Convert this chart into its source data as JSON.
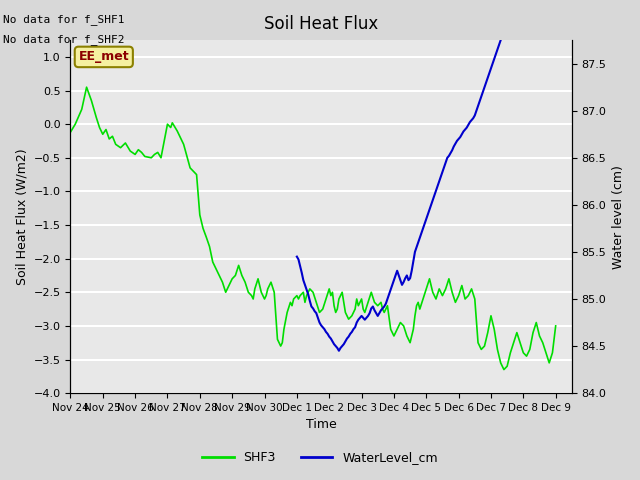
{
  "title": "Soil Heat Flux",
  "xlabel": "Time",
  "ylabel_left": "Soil Heat Flux (W/m2)",
  "ylabel_right": "Water level (cm)",
  "text_no_data": [
    "No data for f_SHF1",
    "No data for f_SHF2"
  ],
  "ee_met_label": "EE_met",
  "ylim_left": [
    -4.0,
    1.25
  ],
  "ylim_right": [
    84.0,
    87.75
  ],
  "yticks_left": [
    -4.0,
    -3.5,
    -3.0,
    -2.5,
    -2.0,
    -1.5,
    -1.0,
    -0.5,
    0.0,
    0.5,
    1.0
  ],
  "yticks_right": [
    84.0,
    84.5,
    85.0,
    85.5,
    86.0,
    86.5,
    87.0,
    87.5
  ],
  "bg_color": "#e8e8e8",
  "grid_color": "#ffffff",
  "shf3_color": "#00dd00",
  "water_color": "#0000cc",
  "legend_shf3": "SHF3",
  "legend_water": "WaterLevel_cm",
  "shf3_data": [
    [
      0,
      -0.12
    ],
    [
      0.15,
      0.0
    ],
    [
      0.35,
      0.22
    ],
    [
      0.5,
      0.55
    ],
    [
      0.65,
      0.35
    ],
    [
      0.8,
      0.1
    ],
    [
      0.9,
      -0.05
    ],
    [
      1.0,
      -0.15
    ],
    [
      1.1,
      -0.08
    ],
    [
      1.2,
      -0.22
    ],
    [
      1.3,
      -0.18
    ],
    [
      1.4,
      -0.3
    ],
    [
      1.55,
      -0.35
    ],
    [
      1.7,
      -0.28
    ],
    [
      1.85,
      -0.4
    ],
    [
      2.0,
      -0.45
    ],
    [
      2.1,
      -0.38
    ],
    [
      2.2,
      -0.42
    ],
    [
      2.3,
      -0.48
    ],
    [
      2.5,
      -0.5
    ],
    [
      2.6,
      -0.45
    ],
    [
      2.7,
      -0.42
    ],
    [
      2.8,
      -0.5
    ],
    [
      3.0,
      -0.0
    ],
    [
      3.1,
      -0.05
    ],
    [
      3.15,
      0.02
    ],
    [
      3.3,
      -0.1
    ],
    [
      3.5,
      -0.3
    ],
    [
      3.7,
      -0.65
    ],
    [
      3.9,
      -0.75
    ],
    [
      4.0,
      -1.35
    ],
    [
      4.1,
      -1.55
    ],
    [
      4.2,
      -1.68
    ],
    [
      4.3,
      -1.82
    ],
    [
      4.4,
      -2.05
    ],
    [
      4.5,
      -2.15
    ],
    [
      4.6,
      -2.25
    ],
    [
      4.7,
      -2.35
    ],
    [
      4.8,
      -2.5
    ],
    [
      4.9,
      -2.4
    ],
    [
      5.0,
      -2.3
    ],
    [
      5.1,
      -2.25
    ],
    [
      5.2,
      -2.1
    ],
    [
      5.3,
      -2.25
    ],
    [
      5.4,
      -2.35
    ],
    [
      5.5,
      -2.5
    ],
    [
      5.6,
      -2.55
    ],
    [
      5.65,
      -2.6
    ],
    [
      5.7,
      -2.45
    ],
    [
      5.8,
      -2.3
    ],
    [
      5.9,
      -2.5
    ],
    [
      6.0,
      -2.6
    ],
    [
      6.05,
      -2.55
    ],
    [
      6.1,
      -2.45
    ],
    [
      6.2,
      -2.35
    ],
    [
      6.3,
      -2.5
    ],
    [
      6.4,
      -3.2
    ],
    [
      6.5,
      -3.3
    ],
    [
      6.55,
      -3.25
    ],
    [
      6.6,
      -3.05
    ],
    [
      6.7,
      -2.8
    ],
    [
      6.8,
      -2.65
    ],
    [
      6.85,
      -2.7
    ],
    [
      6.9,
      -2.6
    ],
    [
      7.0,
      -2.55
    ],
    [
      7.05,
      -2.6
    ],
    [
      7.1,
      -2.55
    ],
    [
      7.2,
      -2.5
    ],
    [
      7.25,
      -2.65
    ],
    [
      7.3,
      -2.55
    ],
    [
      7.4,
      -2.45
    ],
    [
      7.5,
      -2.5
    ],
    [
      7.6,
      -2.65
    ],
    [
      7.7,
      -2.8
    ],
    [
      7.8,
      -2.75
    ],
    [
      7.9,
      -2.6
    ],
    [
      8.0,
      -2.45
    ],
    [
      8.05,
      -2.55
    ],
    [
      8.1,
      -2.5
    ],
    [
      8.15,
      -2.7
    ],
    [
      8.2,
      -2.8
    ],
    [
      8.25,
      -2.75
    ],
    [
      8.3,
      -2.6
    ],
    [
      8.4,
      -2.5
    ],
    [
      8.5,
      -2.8
    ],
    [
      8.6,
      -2.9
    ],
    [
      8.7,
      -2.85
    ],
    [
      8.8,
      -2.75
    ],
    [
      8.85,
      -2.6
    ],
    [
      8.9,
      -2.7
    ],
    [
      8.95,
      -2.65
    ],
    [
      9.0,
      -2.6
    ],
    [
      9.05,
      -2.75
    ],
    [
      9.1,
      -2.8
    ],
    [
      9.2,
      -2.65
    ],
    [
      9.3,
      -2.5
    ],
    [
      9.4,
      -2.65
    ],
    [
      9.5,
      -2.7
    ],
    [
      9.6,
      -2.65
    ],
    [
      9.65,
      -2.75
    ],
    [
      9.7,
      -2.8
    ],
    [
      9.8,
      -2.7
    ],
    [
      9.9,
      -3.05
    ],
    [
      10.0,
      -3.15
    ],
    [
      10.1,
      -3.05
    ],
    [
      10.2,
      -2.95
    ],
    [
      10.3,
      -3.0
    ],
    [
      10.4,
      -3.15
    ],
    [
      10.5,
      -3.25
    ],
    [
      10.6,
      -3.05
    ],
    [
      10.65,
      -2.85
    ],
    [
      10.7,
      -2.7
    ],
    [
      10.75,
      -2.65
    ],
    [
      10.8,
      -2.75
    ],
    [
      10.9,
      -2.6
    ],
    [
      11.0,
      -2.45
    ],
    [
      11.1,
      -2.3
    ],
    [
      11.2,
      -2.5
    ],
    [
      11.3,
      -2.6
    ],
    [
      11.4,
      -2.45
    ],
    [
      11.5,
      -2.55
    ],
    [
      11.6,
      -2.45
    ],
    [
      11.7,
      -2.3
    ],
    [
      11.8,
      -2.5
    ],
    [
      11.9,
      -2.65
    ],
    [
      12.0,
      -2.55
    ],
    [
      12.1,
      -2.4
    ],
    [
      12.2,
      -2.6
    ],
    [
      12.3,
      -2.55
    ],
    [
      12.4,
      -2.45
    ],
    [
      12.5,
      -2.6
    ],
    [
      12.6,
      -3.25
    ],
    [
      12.7,
      -3.35
    ],
    [
      12.8,
      -3.3
    ],
    [
      12.9,
      -3.1
    ],
    [
      13.0,
      -2.85
    ],
    [
      13.1,
      -3.05
    ],
    [
      13.2,
      -3.35
    ],
    [
      13.3,
      -3.55
    ],
    [
      13.4,
      -3.65
    ],
    [
      13.5,
      -3.6
    ],
    [
      13.6,
      -3.4
    ],
    [
      13.7,
      -3.25
    ],
    [
      13.8,
      -3.1
    ],
    [
      13.9,
      -3.25
    ],
    [
      14.0,
      -3.4
    ],
    [
      14.1,
      -3.45
    ],
    [
      14.2,
      -3.35
    ],
    [
      14.3,
      -3.1
    ],
    [
      14.4,
      -2.95
    ],
    [
      14.5,
      -3.15
    ],
    [
      14.6,
      -3.25
    ],
    [
      14.7,
      -3.4
    ],
    [
      14.8,
      -3.55
    ],
    [
      14.9,
      -3.4
    ],
    [
      15.0,
      -3.0
    ]
  ],
  "water_data": [
    [
      7.0,
      85.45
    ],
    [
      7.05,
      85.42
    ],
    [
      7.1,
      85.35
    ],
    [
      7.15,
      85.28
    ],
    [
      7.2,
      85.2
    ],
    [
      7.25,
      85.15
    ],
    [
      7.3,
      85.1
    ],
    [
      7.35,
      85.05
    ],
    [
      7.4,
      84.98
    ],
    [
      7.45,
      84.92
    ],
    [
      7.5,
      84.9
    ],
    [
      7.55,
      84.87
    ],
    [
      7.6,
      84.85
    ],
    [
      7.65,
      84.8
    ],
    [
      7.7,
      84.75
    ],
    [
      7.75,
      84.72
    ],
    [
      7.8,
      84.7
    ],
    [
      7.85,
      84.68
    ],
    [
      7.9,
      84.65
    ],
    [
      7.95,
      84.63
    ],
    [
      8.0,
      84.6
    ],
    [
      8.05,
      84.58
    ],
    [
      8.1,
      84.55
    ],
    [
      8.15,
      84.52
    ],
    [
      8.2,
      84.5
    ],
    [
      8.25,
      84.48
    ],
    [
      8.3,
      84.45
    ],
    [
      8.35,
      84.48
    ],
    [
      8.4,
      84.5
    ],
    [
      8.45,
      84.52
    ],
    [
      8.5,
      84.55
    ],
    [
      8.55,
      84.58
    ],
    [
      8.6,
      84.6
    ],
    [
      8.65,
      84.63
    ],
    [
      8.7,
      84.65
    ],
    [
      8.75,
      84.68
    ],
    [
      8.8,
      84.7
    ],
    [
      8.85,
      84.75
    ],
    [
      8.9,
      84.78
    ],
    [
      8.95,
      84.8
    ],
    [
      9.0,
      84.82
    ],
    [
      9.05,
      84.8
    ],
    [
      9.1,
      84.78
    ],
    [
      9.15,
      84.8
    ],
    [
      9.2,
      84.82
    ],
    [
      9.25,
      84.85
    ],
    [
      9.3,
      84.9
    ],
    [
      9.35,
      84.92
    ],
    [
      9.4,
      84.88
    ],
    [
      9.45,
      84.85
    ],
    [
      9.5,
      84.82
    ],
    [
      9.55,
      84.85
    ],
    [
      9.6,
      84.88
    ],
    [
      9.65,
      84.9
    ],
    [
      9.7,
      84.92
    ],
    [
      9.75,
      84.95
    ],
    [
      9.8,
      85.0
    ],
    [
      9.85,
      85.05
    ],
    [
      9.9,
      85.1
    ],
    [
      9.95,
      85.15
    ],
    [
      10.0,
      85.2
    ],
    [
      10.05,
      85.25
    ],
    [
      10.1,
      85.3
    ],
    [
      10.15,
      85.25
    ],
    [
      10.2,
      85.2
    ],
    [
      10.25,
      85.15
    ],
    [
      10.3,
      85.18
    ],
    [
      10.35,
      85.22
    ],
    [
      10.4,
      85.25
    ],
    [
      10.45,
      85.2
    ],
    [
      10.5,
      85.22
    ],
    [
      10.55,
      85.3
    ],
    [
      10.6,
      85.4
    ],
    [
      10.65,
      85.5
    ],
    [
      10.7,
      85.55
    ],
    [
      10.75,
      85.6
    ],
    [
      10.8,
      85.65
    ],
    [
      10.85,
      85.7
    ],
    [
      10.9,
      85.75
    ],
    [
      10.95,
      85.8
    ],
    [
      11.0,
      85.85
    ],
    [
      11.05,
      85.9
    ],
    [
      11.1,
      85.95
    ],
    [
      11.15,
      86.0
    ],
    [
      11.2,
      86.05
    ],
    [
      11.25,
      86.1
    ],
    [
      11.3,
      86.15
    ],
    [
      11.35,
      86.2
    ],
    [
      11.4,
      86.25
    ],
    [
      11.45,
      86.3
    ],
    [
      11.5,
      86.35
    ],
    [
      11.55,
      86.4
    ],
    [
      11.6,
      86.45
    ],
    [
      11.65,
      86.5
    ],
    [
      11.7,
      86.52
    ],
    [
      11.75,
      86.55
    ],
    [
      11.8,
      86.58
    ],
    [
      11.85,
      86.62
    ],
    [
      11.9,
      86.65
    ],
    [
      11.95,
      86.68
    ],
    [
      12.0,
      86.7
    ],
    [
      12.05,
      86.72
    ],
    [
      12.1,
      86.75
    ],
    [
      12.15,
      86.78
    ],
    [
      12.2,
      86.8
    ],
    [
      12.25,
      86.82
    ],
    [
      12.3,
      86.85
    ],
    [
      12.35,
      86.88
    ],
    [
      12.4,
      86.9
    ],
    [
      12.45,
      86.92
    ],
    [
      12.5,
      86.95
    ],
    [
      12.55,
      87.0
    ],
    [
      12.6,
      87.05
    ],
    [
      12.65,
      87.1
    ],
    [
      12.7,
      87.15
    ],
    [
      12.75,
      87.2
    ],
    [
      12.8,
      87.25
    ],
    [
      12.85,
      87.3
    ],
    [
      12.9,
      87.35
    ],
    [
      12.95,
      87.4
    ],
    [
      13.0,
      87.45
    ],
    [
      13.05,
      87.5
    ],
    [
      13.1,
      87.55
    ],
    [
      13.15,
      87.6
    ],
    [
      13.2,
      87.65
    ],
    [
      13.25,
      87.7
    ],
    [
      13.3,
      87.75
    ],
    [
      13.35,
      87.8
    ],
    [
      13.4,
      87.85
    ],
    [
      13.45,
      87.9
    ],
    [
      13.5,
      87.92
    ]
  ],
  "x_tick_days": [
    0,
    1,
    2,
    3,
    4,
    5,
    6,
    7,
    8,
    9,
    10,
    11,
    12,
    13,
    14,
    15
  ],
  "x_tick_labels": [
    "Nov 24",
    "Nov 25",
    "Nov 26",
    "Nov 27",
    "Nov 28",
    "Nov 29",
    "Nov 30",
    "Dec 1",
    "Dec 2",
    "Dec 3",
    "Dec 4",
    "Dec 5",
    "Dec 6",
    "Dec 7",
    "Dec 8",
    "Dec 9"
  ],
  "xlim": [
    0,
    15.5
  ]
}
